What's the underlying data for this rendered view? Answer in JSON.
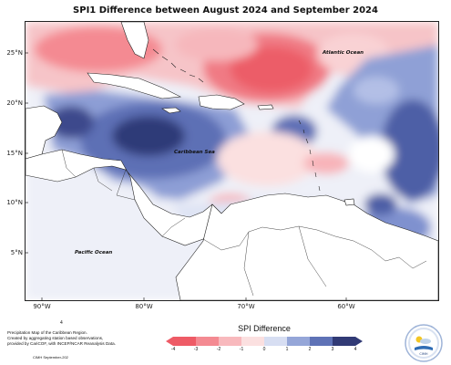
{
  "title": "SPI1 Difference between August 2024 and September 2024",
  "map": {
    "lat_ticks": [
      "25°N",
      "20°N",
      "15°N",
      "10°N",
      "5°N"
    ],
    "lon_ticks": [
      "90°W",
      "80°W",
      "70°W",
      "60°W"
    ],
    "labels": {
      "atlantic": "Atlantic Ocean",
      "caribbean": "Caribbean Sea",
      "pacific": "Pacific Ocean"
    }
  },
  "legend": {
    "title": "SPI Difference",
    "ticks": [
      "-4",
      "-3",
      "-2",
      "-1",
      "0",
      "1",
      "2",
      "3",
      "4"
    ],
    "colors": [
      "#ee5b66",
      "#f48a92",
      "#f8b9bd",
      "#fbe0e0",
      "#ffffff",
      "#d7def2",
      "#95a6d8",
      "#5e72b6",
      "#313a75"
    ]
  },
  "credit": [
    "Precipitation Map of the Caribbean Region.",
    "Created by aggregating station based observations,",
    "provided by CariCOF, with INCEP/NCAR Reanalysis Data."
  ],
  "credit_small": "CIMH September-202",
  "dot_mark": "4",
  "logo_text": "CIMH"
}
